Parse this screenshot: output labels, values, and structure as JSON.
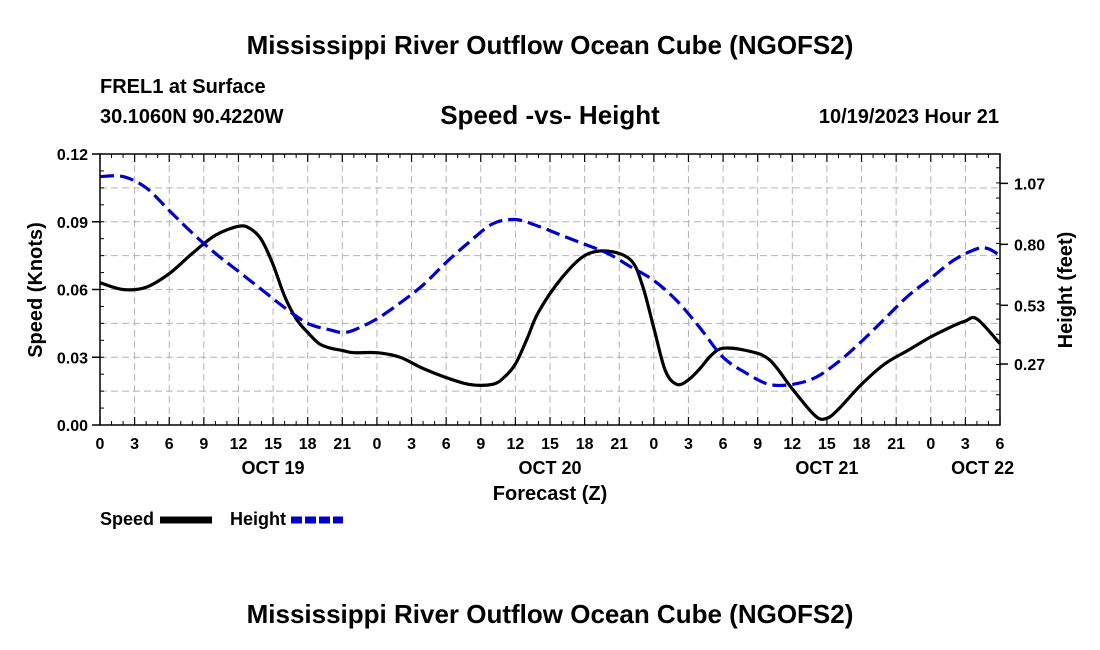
{
  "header": {
    "title": "Mississippi River Outflow Ocean Cube (NGOFS2)",
    "station": "FREL1 at Surface",
    "coords": "30.1060N  90.4220W",
    "subtitle": "Speed -vs- Height",
    "datetime": "10/19/2023 Hour 21"
  },
  "footer": {
    "title": "Mississippi River Outflow Ocean Cube (NGOFS2)"
  },
  "chart_data": {
    "type": "line",
    "title": "Speed -vs- Height",
    "xlabel": "Forecast (Z)",
    "ylabel_left": "Speed (Knots)",
    "ylabel_right": "Height (feet)",
    "x_range_hours": [
      0,
      78
    ],
    "y_left_range": [
      0,
      0.12
    ],
    "y_right_range": [
      0.0,
      1.2
    ],
    "x_tick_labels": [
      "0",
      "3",
      "6",
      "9",
      "12",
      "15",
      "18",
      "21",
      "0",
      "3",
      "6",
      "9",
      "12",
      "15",
      "18",
      "21",
      "0",
      "3",
      "6",
      "9",
      "12",
      "15",
      "18",
      "21",
      "0",
      "3",
      "6"
    ],
    "date_labels": [
      {
        "hour": 15,
        "label": "OCT 19"
      },
      {
        "hour": 39,
        "label": "OCT 20"
      },
      {
        "hour": 63,
        "label": "OCT 21"
      },
      {
        "hour": 76.5,
        "label": "OCT 22"
      }
    ],
    "y_left_ticks": [
      "0.00",
      "0.03",
      "0.06",
      "0.09",
      "0.12"
    ],
    "y_right_ticks": [
      {
        "value": 0.27,
        "label": "0.27"
      },
      {
        "value": 0.53,
        "label": "0.53"
      },
      {
        "value": 0.8,
        "label": "0.80"
      },
      {
        "value": 1.07,
        "label": "1.07"
      }
    ],
    "grid": true,
    "legend": [
      {
        "name": "Speed",
        "color": "#000000",
        "dash": "solid"
      },
      {
        "name": "Height",
        "color": "#0000cc",
        "dash": "dashed"
      }
    ],
    "series": [
      {
        "name": "Speed",
        "axis": "left",
        "color": "#000000",
        "x": [
          0,
          2,
          4,
          6,
          8,
          10,
          12,
          13,
          14,
          15,
          16,
          17,
          18,
          19,
          20,
          21,
          22,
          24,
          26,
          28,
          30,
          32,
          34,
          35,
          36,
          37,
          38,
          40,
          42,
          44,
          46,
          47,
          48,
          49,
          50,
          51,
          52,
          53,
          54,
          56,
          58,
          60,
          62,
          63,
          64,
          66,
          68,
          70,
          72,
          74,
          75,
          76,
          78
        ],
        "values": [
          0.063,
          0.06,
          0.061,
          0.067,
          0.076,
          0.084,
          0.088,
          0.087,
          0.082,
          0.071,
          0.057,
          0.047,
          0.041,
          0.036,
          0.034,
          0.033,
          0.032,
          0.032,
          0.03,
          0.025,
          0.021,
          0.018,
          0.018,
          0.021,
          0.027,
          0.038,
          0.05,
          0.065,
          0.075,
          0.077,
          0.073,
          0.062,
          0.043,
          0.024,
          0.018,
          0.02,
          0.025,
          0.031,
          0.034,
          0.033,
          0.029,
          0.016,
          0.004,
          0.003,
          0.007,
          0.018,
          0.027,
          0.033,
          0.039,
          0.044,
          0.046,
          0.047,
          0.036
        ]
      },
      {
        "name": "Height",
        "axis": "right",
        "color": "#0000cc",
        "x": [
          0,
          2,
          4,
          6,
          8,
          10,
          12,
          14,
          16,
          18,
          20,
          21,
          22,
          24,
          26,
          28,
          30,
          32,
          34,
          36,
          38,
          40,
          42,
          44,
          46,
          48,
          50,
          52,
          54,
          56,
          58,
          60,
          62,
          64,
          66,
          68,
          70,
          72,
          74,
          76,
          77,
          78
        ],
        "values": [
          1.1,
          1.1,
          1.05,
          0.95,
          0.85,
          0.76,
          0.68,
          0.6,
          0.52,
          0.45,
          0.42,
          0.41,
          0.42,
          0.47,
          0.54,
          0.62,
          0.72,
          0.81,
          0.89,
          0.91,
          0.88,
          0.84,
          0.8,
          0.76,
          0.7,
          0.64,
          0.55,
          0.43,
          0.3,
          0.23,
          0.18,
          0.18,
          0.21,
          0.28,
          0.37,
          0.47,
          0.57,
          0.65,
          0.73,
          0.78,
          0.78,
          0.75
        ]
      }
    ]
  }
}
